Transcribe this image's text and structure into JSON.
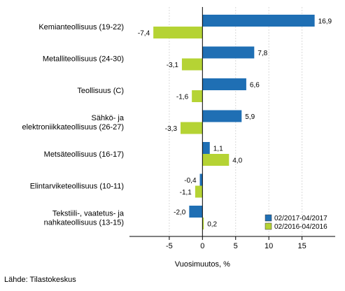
{
  "chart_data": {
    "type": "bar",
    "orientation": "horizontal",
    "categories": [
      [
        "Kemianteollisuus (19-22)"
      ],
      [
        "Metalliteollisuus (24-30)"
      ],
      [
        "Teollisuus (C)"
      ],
      [
        "Sähkö- ja",
        "elektroniikkateollisuus (26-27)"
      ],
      [
        "Metsäteollisuus (16-17)"
      ],
      [
        "Elintarviketeollisuus (10-11)"
      ],
      [
        "Tekstiili-, vaatetus- ja",
        "nahkateollisuus (13-15)"
      ]
    ],
    "series": [
      {
        "name": "02/2017-04/2017",
        "color": "#1f6fb4",
        "values": [
          16.9,
          7.8,
          6.6,
          5.9,
          1.1,
          -0.4,
          -2.0
        ],
        "labels": [
          "16,9",
          "7,8",
          "6,6",
          "5,9",
          "1,1",
          "-0,4",
          "-2,0"
        ]
      },
      {
        "name": "02/2016-04/2016",
        "color": "#b5d334",
        "values": [
          -7.4,
          -3.1,
          -1.6,
          -3.3,
          4.0,
          -1.1,
          0.2
        ],
        "labels": [
          "-7,4",
          "-3,1",
          "-1,6",
          "-3,3",
          "4,0",
          "-1,1",
          "0,2"
        ]
      }
    ],
    "xlim": [
      -11,
      20
    ],
    "xticks": [
      -5,
      0,
      5,
      10,
      15
    ],
    "xtick_labels": [
      "-5",
      "0",
      "5",
      "10",
      "15"
    ],
    "xlabel": "Vuosimuutos, %",
    "grid": "vertical",
    "legend_position": "bottom-right"
  },
  "source": "Lähde: Tilastokeskus"
}
